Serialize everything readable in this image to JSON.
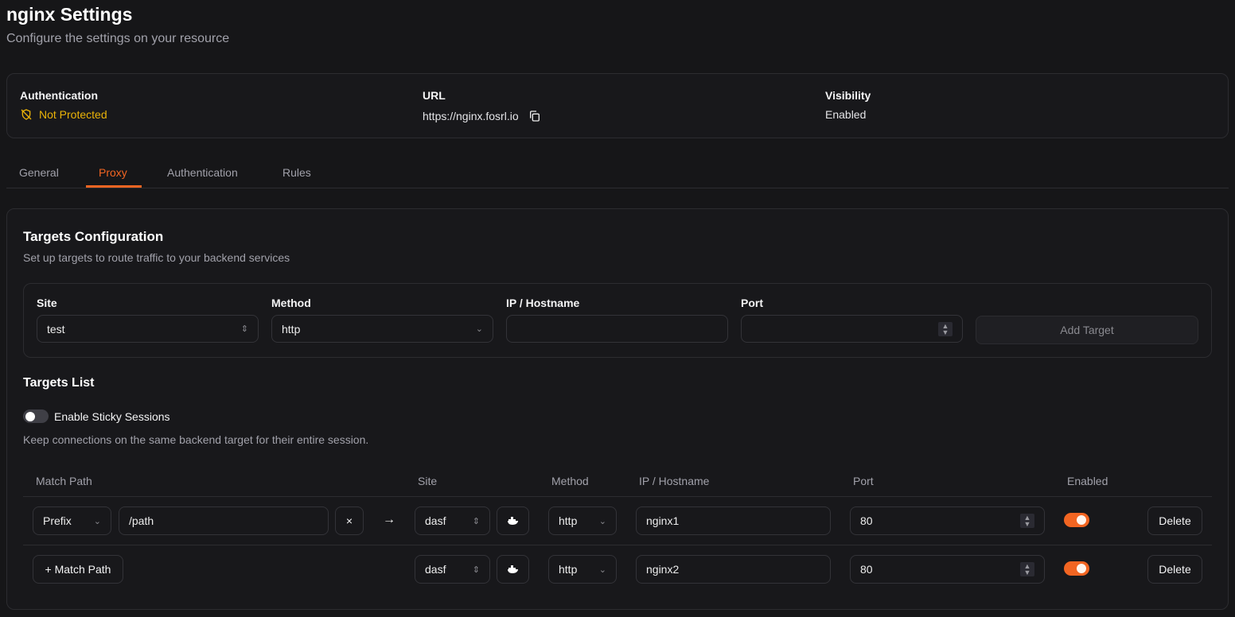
{
  "header": {
    "title": "nginx Settings",
    "subtitle": "Configure the settings on your resource"
  },
  "info": {
    "authentication_label": "Authentication",
    "authentication_value": "Not Protected",
    "url_label": "URL",
    "url_value": "https://nginx.fosrl.io",
    "visibility_label": "Visibility",
    "visibility_value": "Enabled"
  },
  "tabs": [
    {
      "label": "General"
    },
    {
      "label": "Proxy",
      "active": true
    },
    {
      "label": "Authentication"
    },
    {
      "label": "Rules"
    }
  ],
  "targets": {
    "title": "Targets Configuration",
    "subtitle": "Set up targets to route traffic to your backend services",
    "form": {
      "site_label": "Site",
      "site_value": "test",
      "method_label": "Method",
      "method_value": "http",
      "ip_label": "IP / Hostname",
      "ip_value": "",
      "port_label": "Port",
      "port_value": "",
      "add_button": "Add Target"
    }
  },
  "list": {
    "title": "Targets List",
    "sticky_label": "Enable Sticky Sessions",
    "sticky_enabled": false,
    "sticky_help": "Keep connections on the same backend target for their entire session.",
    "columns": [
      "Match Path",
      "Site",
      "Method",
      "IP / Hostname",
      "Port",
      "Enabled"
    ],
    "rows": [
      {
        "match_type": "Prefix",
        "path": "/path",
        "clear": "×",
        "arrow": "→",
        "site": "dasf",
        "method": "http",
        "ip": "nginx1",
        "port": "80",
        "enabled": true,
        "delete": "Delete"
      },
      {
        "add_match": "+ Match Path",
        "site": "dasf",
        "method": "http",
        "ip": "nginx2",
        "port": "80",
        "enabled": true,
        "delete": "Delete"
      }
    ]
  },
  "colors": {
    "accent": "#f26522",
    "warning": "#eab308",
    "background": "#161618"
  }
}
